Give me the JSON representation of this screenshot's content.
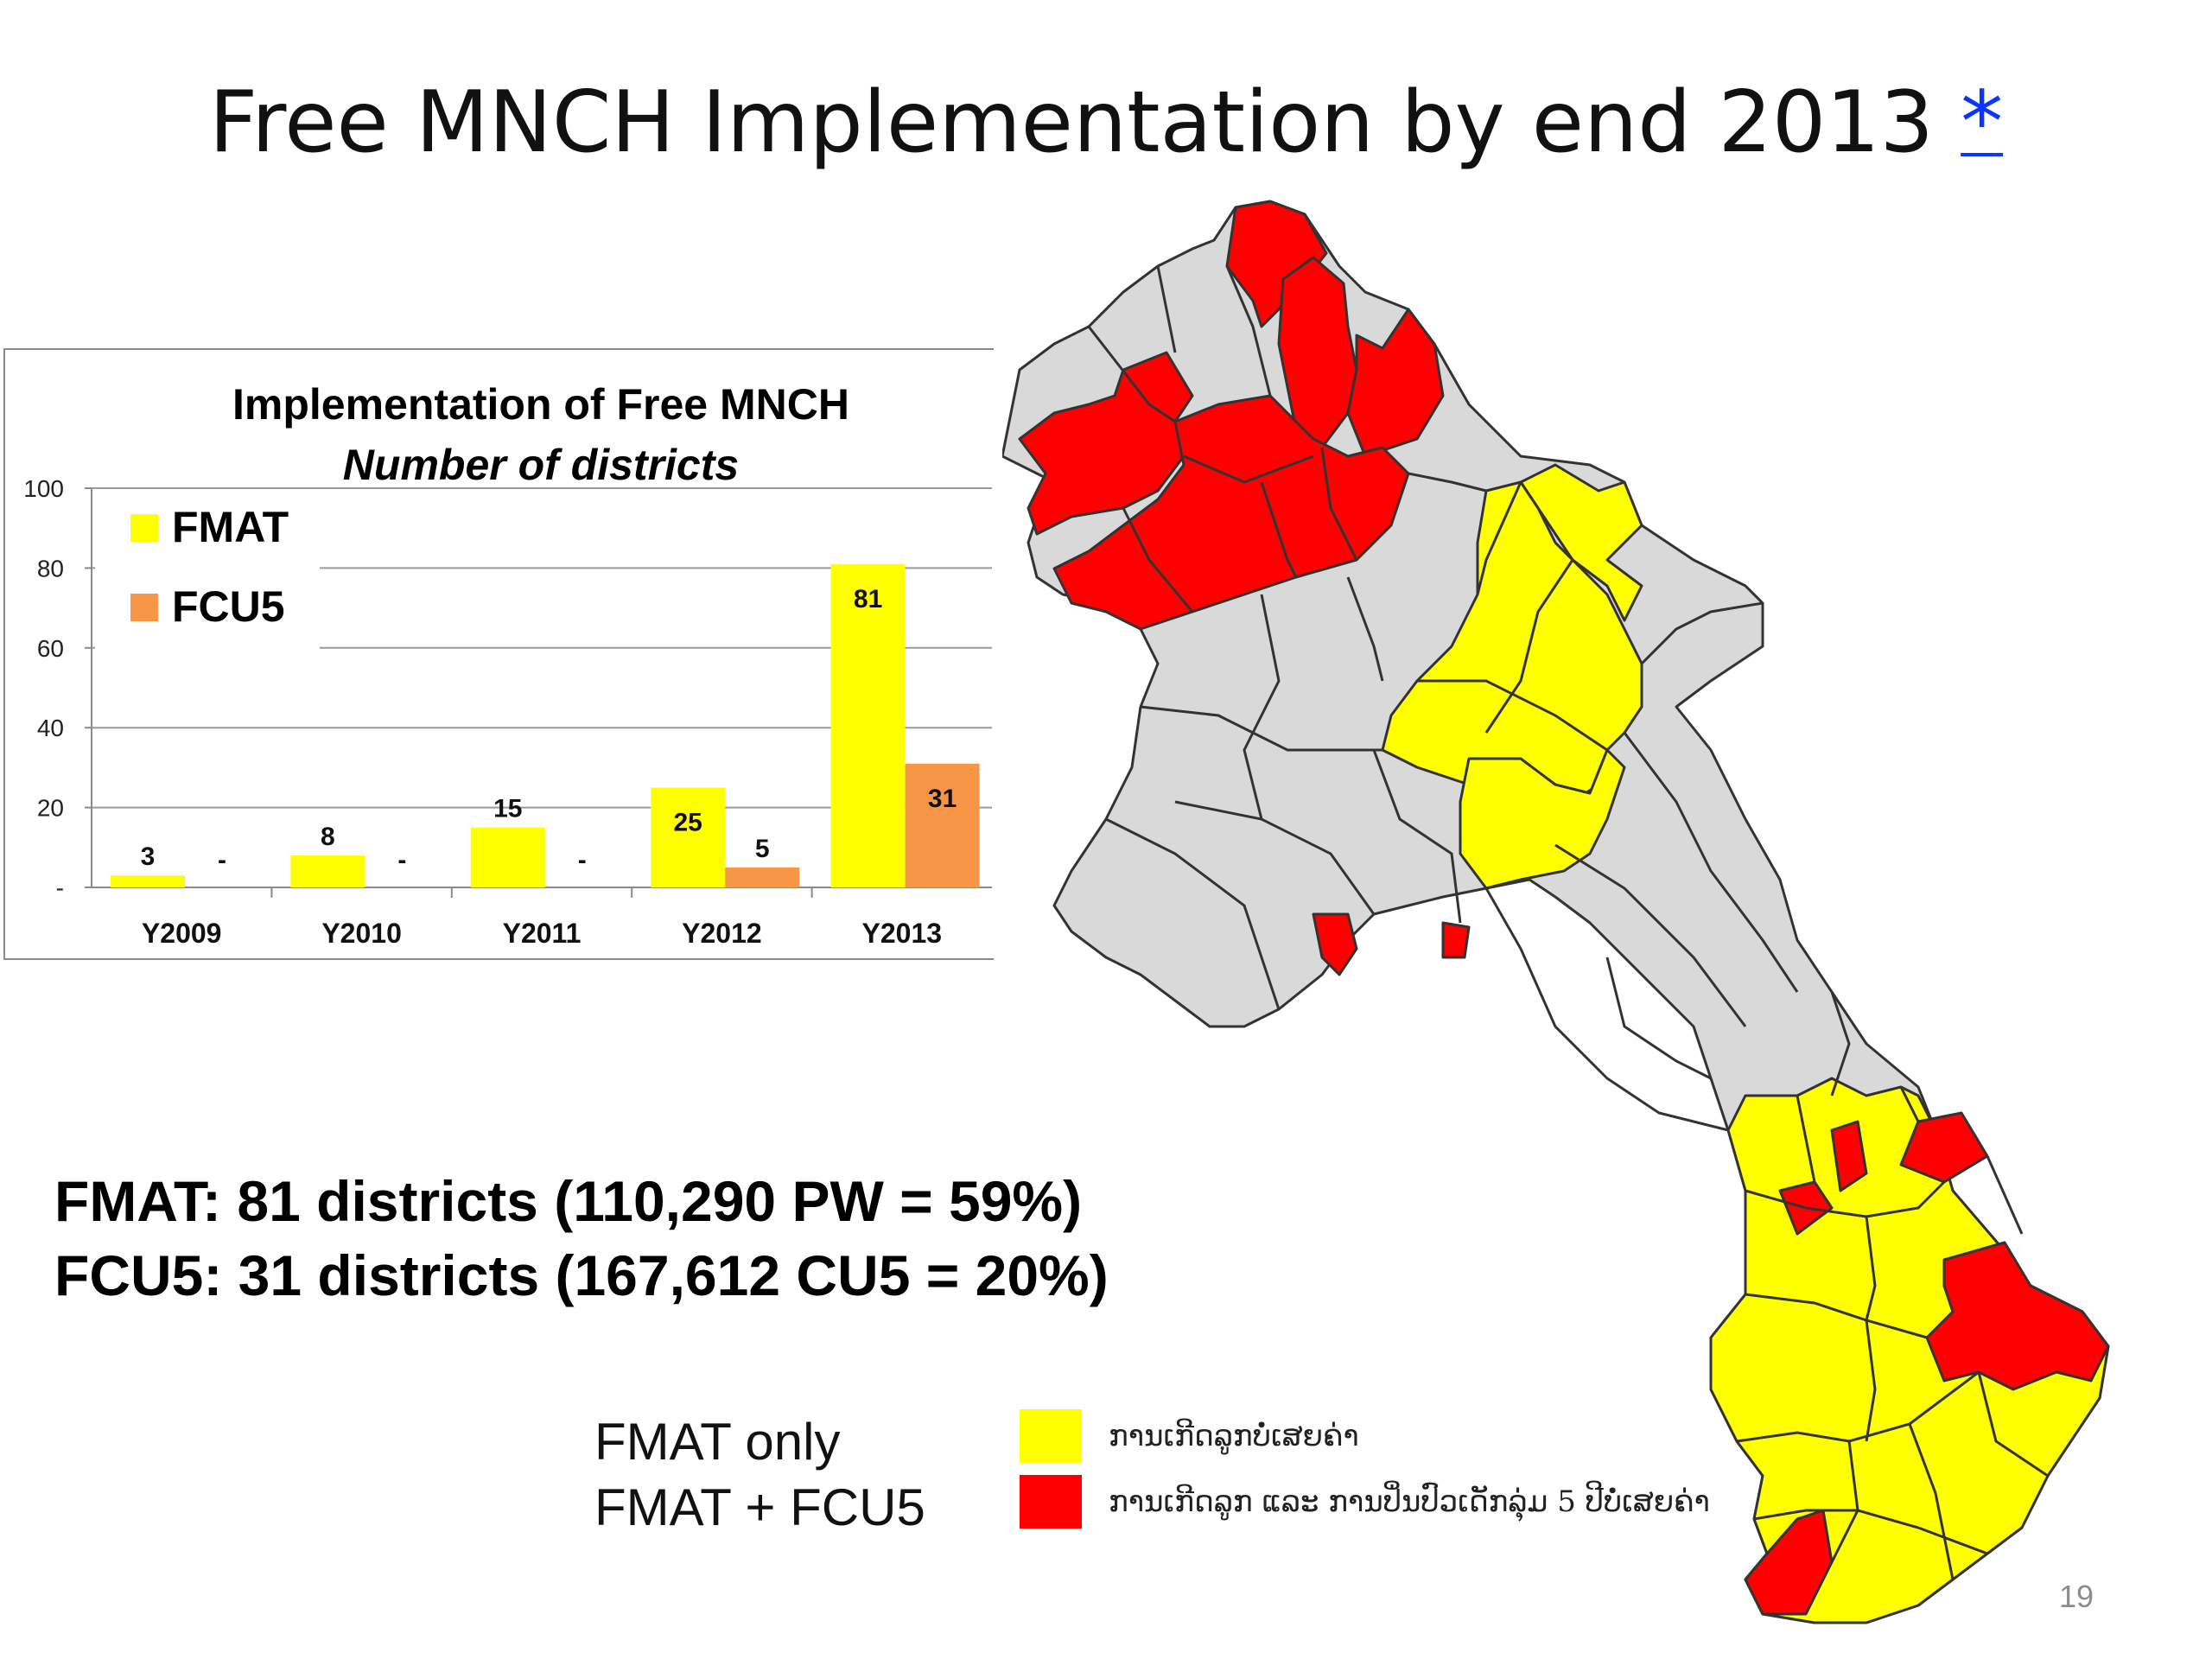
{
  "slide": {
    "title": "Free MNCH Implementation by end 2013",
    "title_link": "*",
    "page_number": "19"
  },
  "stats": {
    "fmat_line": "FMAT: 81 districts (110,290 PW = 59%)",
    "fcu5_line": "FCU5: 31 districts (167,612 CU5 = 20%)"
  },
  "map_legend": {
    "fmat_only_label": "FMAT only",
    "fmat_fcu5_label": "FMAT + FCU5",
    "fmat_only_lao": "ການເກີດລູກບໍ່ເສຍຄ່າ",
    "fmat_fcu5_lao": "ການເກີດລູກ ແລະ ການປິ່ນປົວເດັກລຸ່ມ 5 ປີບໍ່ເສຍຄ່າ",
    "fmat_only_color": "#ffff00",
    "fmat_fcu5_color": "#ff0000"
  },
  "map_colors": {
    "other_districts": "#d9d9d9",
    "border": "#333333"
  },
  "chart_data": {
    "type": "bar",
    "title": "Implementation of Free MNCH",
    "subtitle": "Number of districts",
    "categories": [
      "Y2009",
      "Y2010",
      "Y2011",
      "Y2012",
      "Y2013"
    ],
    "series": [
      {
        "name": "FMAT",
        "values": [
          3,
          8,
          15,
          25,
          81
        ],
        "labels": [
          "3",
          "8",
          "15",
          "25",
          "81"
        ],
        "color": "#ffff00"
      },
      {
        "name": "FCU5",
        "values": [
          0,
          0,
          0,
          5,
          31
        ],
        "labels": [
          "-",
          "-",
          "-",
          "5",
          "31"
        ],
        "color": "#f79646"
      }
    ],
    "y_ticks": [
      "-",
      "20",
      "40",
      "60",
      "80",
      "100"
    ],
    "ylim": [
      0,
      100
    ],
    "grid": true,
    "legend_position": "top-left"
  }
}
